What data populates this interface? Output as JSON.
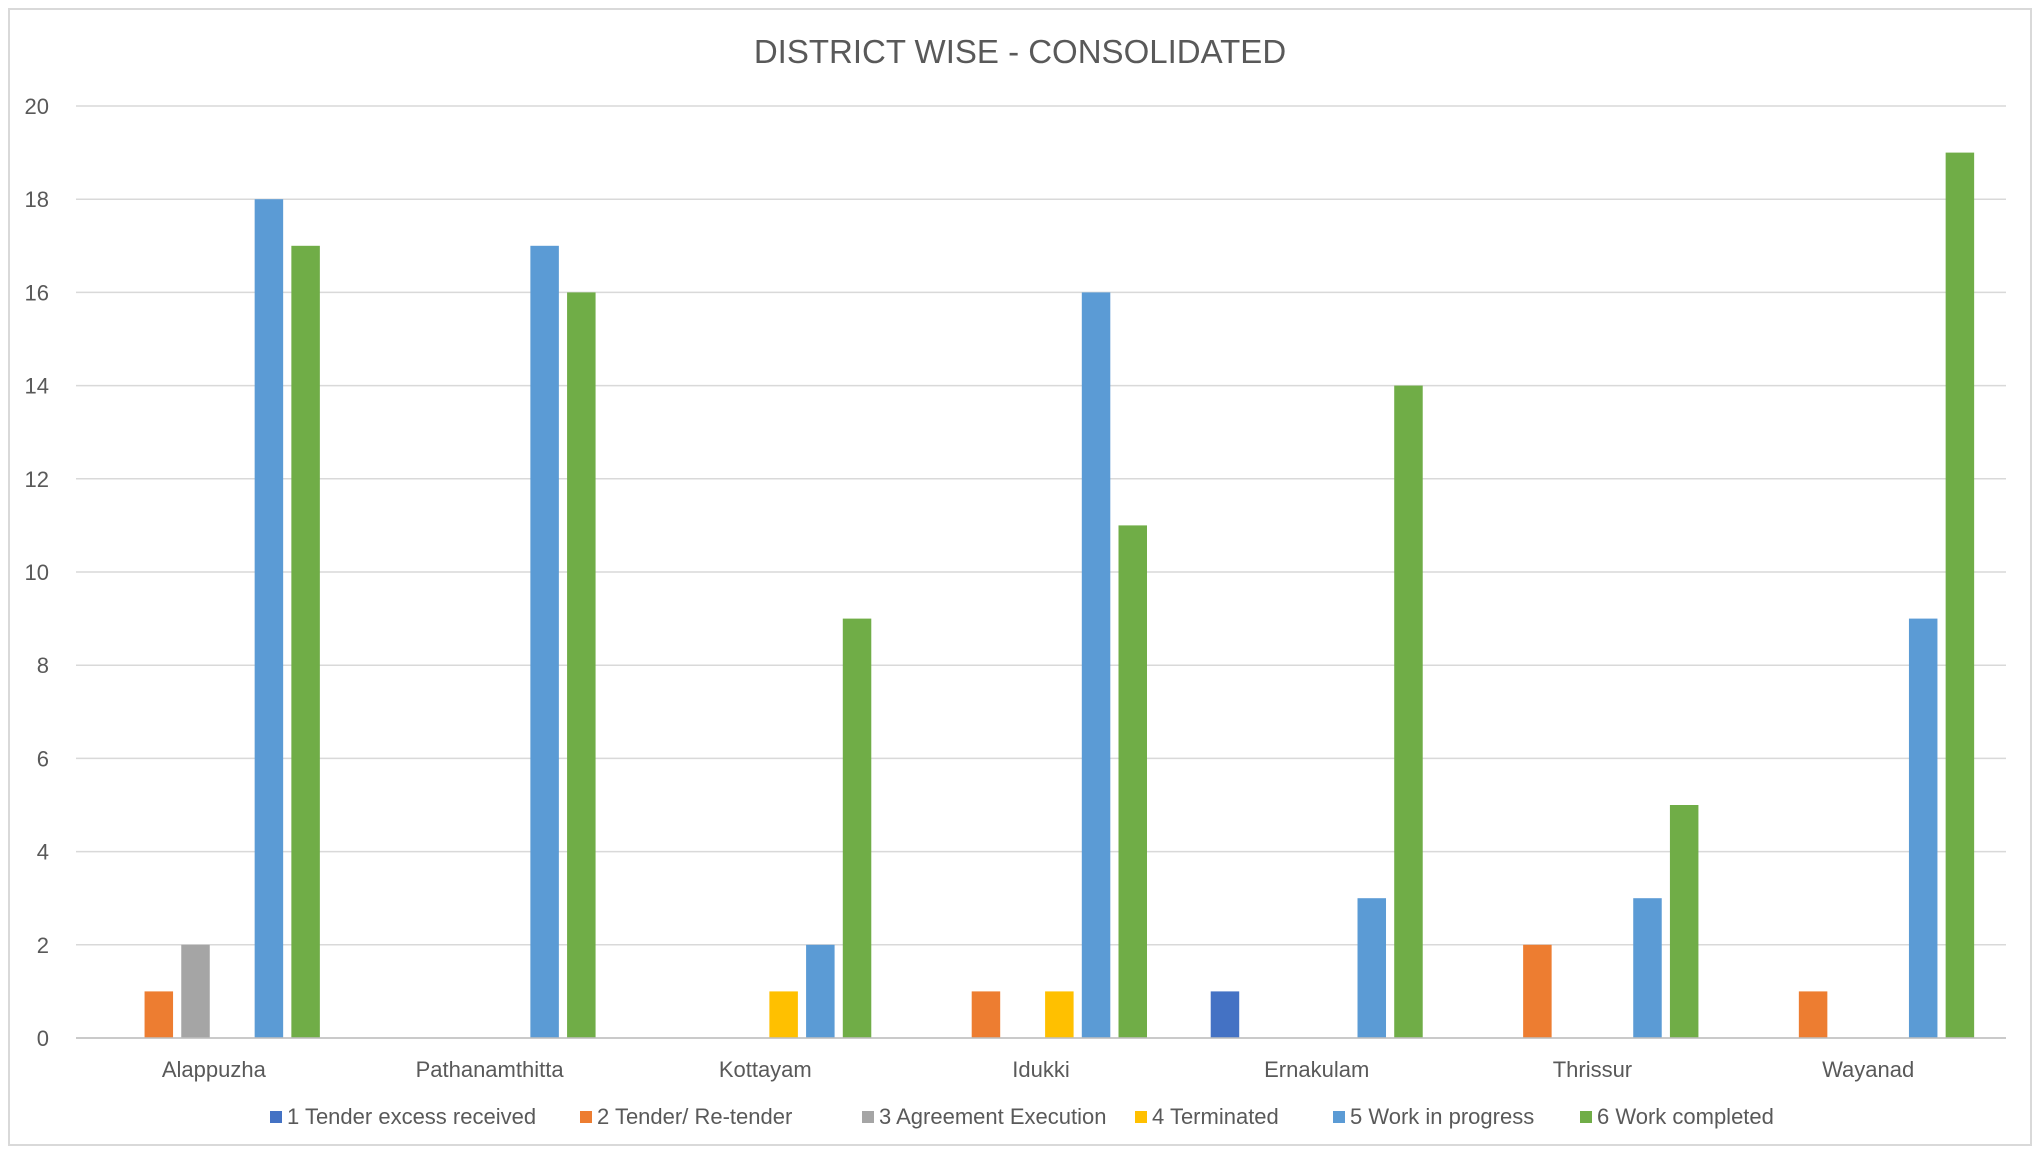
{
  "chart_data": {
    "type": "bar",
    "title": "DISTRICT WISE - CONSOLIDATED",
    "xlabel": "",
    "ylabel": "",
    "ylim": [
      0,
      20
    ],
    "yticks": [
      0,
      2,
      4,
      6,
      8,
      10,
      12,
      14,
      16,
      18,
      20
    ],
    "grid": true,
    "legend_position": "bottom",
    "categories": [
      "Alappuzha",
      "Pathanamthitta",
      "Kottayam",
      "Idukki",
      "Ernakulam",
      "Thrissur",
      "Wayanad"
    ],
    "series": [
      {
        "name": "1 Tender excess received",
        "color": "#4472c4",
        "values": [
          0,
          0,
          0,
          0,
          1,
          0,
          0
        ]
      },
      {
        "name": "2 Tender/ Re-tender",
        "color": "#ed7d31",
        "values": [
          1,
          0,
          0,
          1,
          0,
          2,
          1
        ]
      },
      {
        "name": "3 Agreement Execution",
        "color": "#a5a5a5",
        "values": [
          2,
          0,
          0,
          0,
          0,
          0,
          0
        ]
      },
      {
        "name": "4 Terminated",
        "color": "#ffc000",
        "values": [
          0,
          0,
          1,
          1,
          0,
          0,
          0
        ]
      },
      {
        "name": "5 Work in progress",
        "color": "#5b9bd5",
        "values": [
          18,
          17,
          2,
          16,
          3,
          3,
          9
        ]
      },
      {
        "name": "6 Work completed",
        "color": "#70ad47",
        "values": [
          17,
          16,
          9,
          11,
          14,
          5,
          19
        ]
      }
    ]
  }
}
